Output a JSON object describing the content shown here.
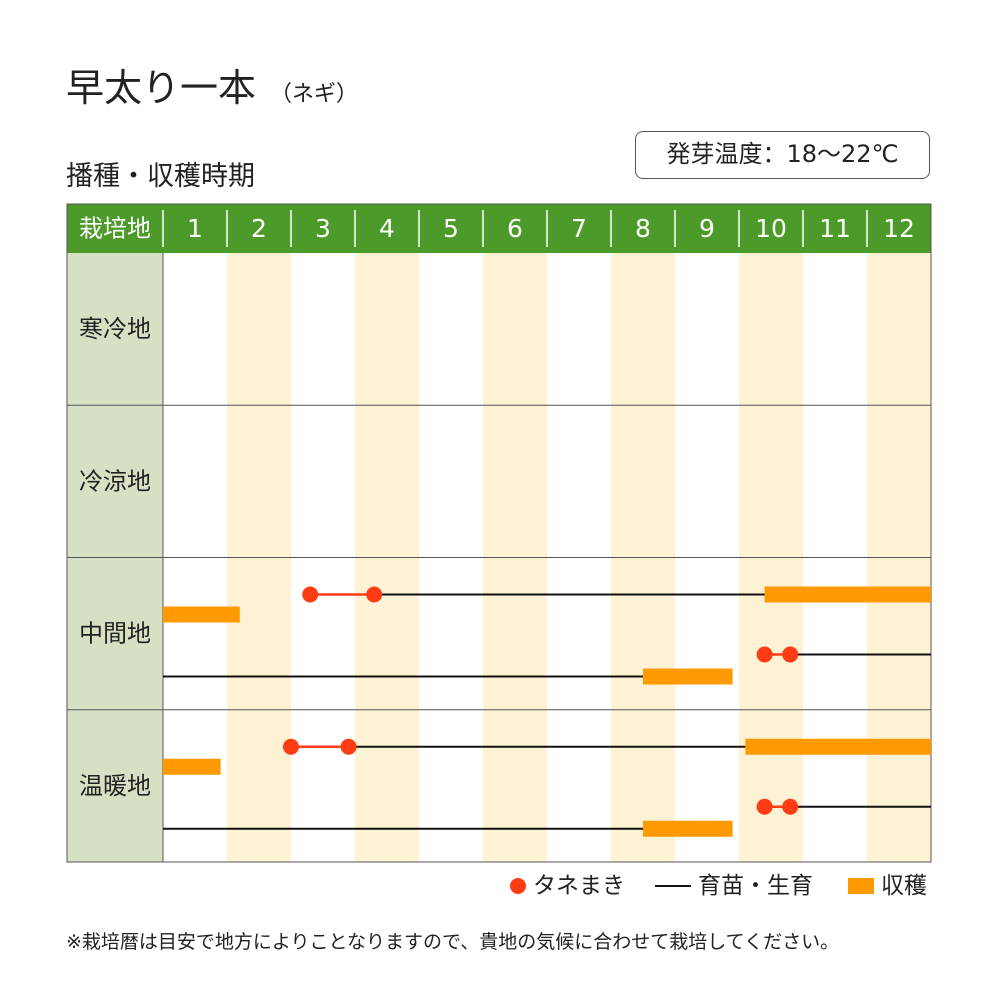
{
  "title": "早太り一本",
  "subtitle": "（ネギ）",
  "section_title": "播種・収穫時期",
  "germination_temp": "発芽温度：18〜22℃",
  "table": {
    "corner_label": "栽培地",
    "months": [
      "1",
      "2",
      "3",
      "4",
      "5",
      "6",
      "7",
      "8",
      "9",
      "10",
      "11",
      "12"
    ],
    "regions": [
      "寒冷地",
      "冷涼地",
      "中間地",
      "温暖地"
    ]
  },
  "colors": {
    "header_bg": "#4c9a2a",
    "region_bg": "#d6e1c3",
    "stripe_bg": "#fdf2d4",
    "sowing": "#ff3c14",
    "growing": "#111111",
    "harvest": "#ff9900",
    "grid": "#555555"
  },
  "chart_data": {
    "type": "gantt",
    "unit": "month",
    "regions": [
      {
        "name": "寒冷地",
        "rows": []
      },
      {
        "name": "冷涼地",
        "rows": []
      },
      {
        "name": "中間地",
        "rows": [
          {
            "sowing": [
              3.3,
              4.3
            ],
            "growing": [
              4.3,
              10.4
            ],
            "harvest": [
              10.4,
              13.0
            ]
          },
          {
            "harvest": [
              1.0,
              2.2
            ]
          },
          {
            "sowing": [
              10.4,
              10.8
            ],
            "growing": [
              10.8,
              13.0
            ]
          },
          {
            "growing": [
              1.0,
              8.5
            ],
            "harvest": [
              8.5,
              9.9
            ]
          }
        ]
      },
      {
        "name": "温暖地",
        "rows": [
          {
            "sowing": [
              3.0,
              3.9
            ],
            "growing": [
              3.9,
              10.1
            ],
            "harvest": [
              10.1,
              13.0
            ]
          },
          {
            "harvest": [
              1.0,
              1.9
            ]
          },
          {
            "sowing": [
              10.4,
              10.8
            ],
            "growing": [
              10.8,
              13.0
            ]
          },
          {
            "growing": [
              1.0,
              8.5
            ],
            "harvest": [
              8.5,
              9.9
            ]
          }
        ]
      }
    ]
  },
  "legend": {
    "sowing": "タネまき",
    "growing": "育苗・生育",
    "harvest": "収穫"
  },
  "note": "※栽培暦は目安で地方によりことなりますので、貴地の気候に合わせて栽培してください。"
}
